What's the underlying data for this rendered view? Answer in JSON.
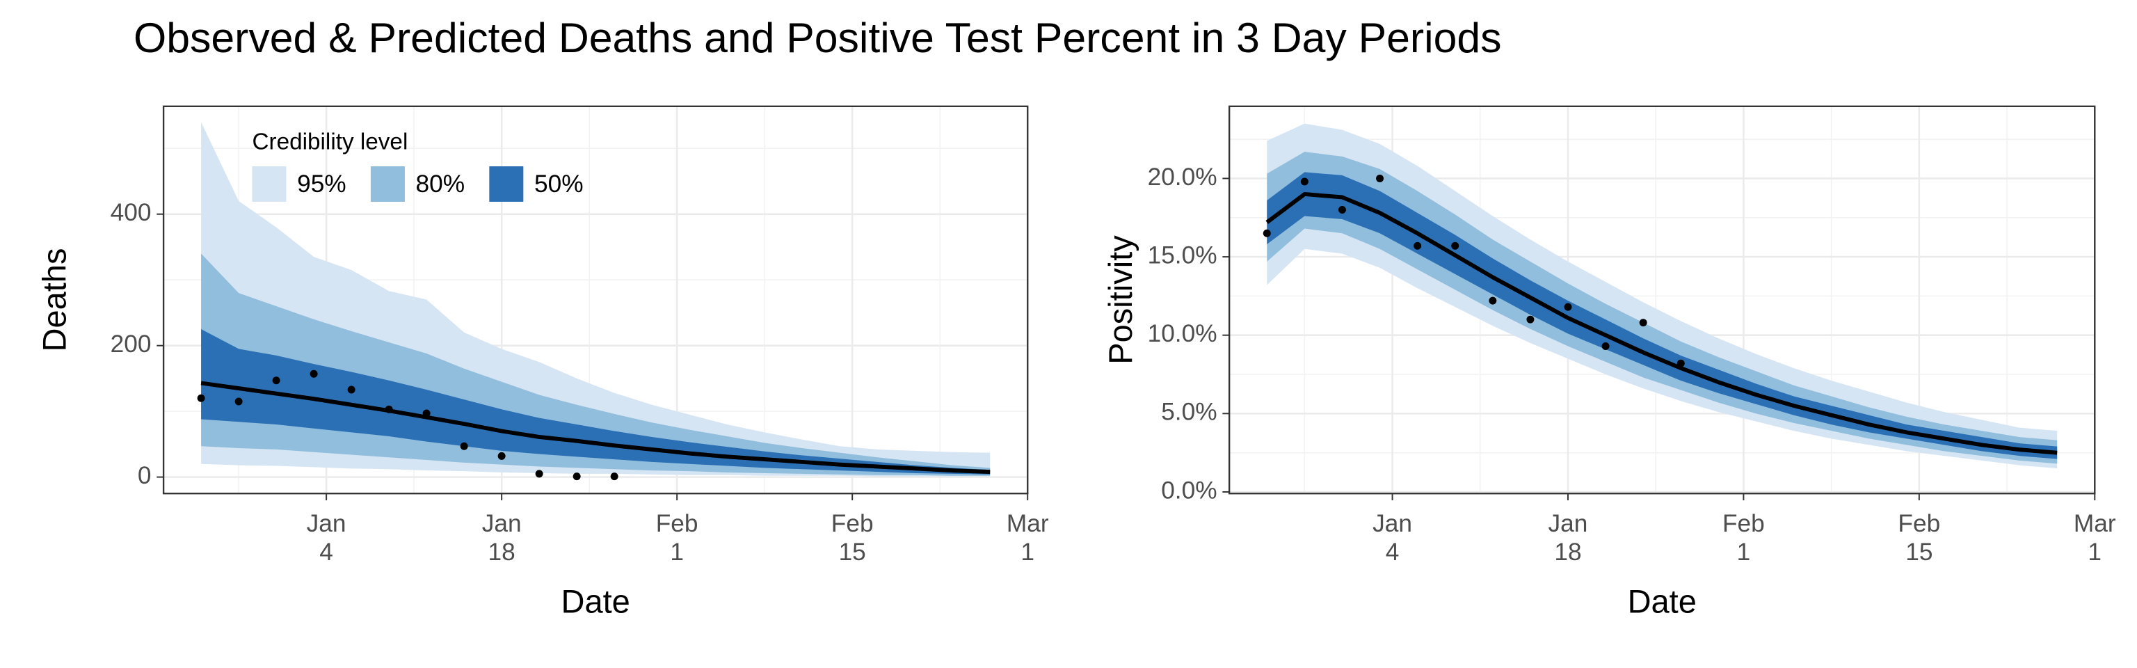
{
  "title": "Observed & Predicted Deaths and Positive Test Percent in 3 Day Periods",
  "chart_data": [
    {
      "type": "fan",
      "ylabel": "Deaths",
      "xlabel": "Date",
      "xlim": [
        "Dec 22",
        "Mar 1"
      ],
      "xticks": [
        {
          "value": "Jan 4",
          "label": "Jan\n4"
        },
        {
          "value": "Jan 18",
          "label": "Jan\n18"
        },
        {
          "value": "Feb 1",
          "label": "Feb\n1"
        },
        {
          "value": "Feb 15",
          "label": "Feb\n15"
        },
        {
          "value": "Mar 1",
          "label": "Mar\n1"
        }
      ],
      "ylim": [
        -25,
        564
      ],
      "yticks": [
        0,
        200,
        400
      ],
      "grid": true,
      "legend": {
        "title": "Credibility level",
        "position": "top-left"
      },
      "x": [
        "Dec 25",
        "Dec 28",
        "Dec 31",
        "Jan 3",
        "Jan 6",
        "Jan 9",
        "Jan 12",
        "Jan 15",
        "Jan 18",
        "Jan 21",
        "Jan 24",
        "Jan 27",
        "Jan 30",
        "Feb 2",
        "Feb 5",
        "Feb 8",
        "Feb 11",
        "Feb 14",
        "Feb 17",
        "Feb 20",
        "Feb 23",
        "Feb 26"
      ],
      "bands": [
        {
          "name": "95%",
          "color": "#d6e5f4",
          "lower": [
            20,
            18,
            17,
            15,
            13,
            12,
            10,
            9,
            7,
            6,
            5,
            5,
            4,
            3,
            3,
            2,
            2,
            2,
            1,
            1,
            1,
            1
          ],
          "upper": [
            540,
            420,
            380,
            335,
            315,
            283,
            270,
            220,
            195,
            175,
            150,
            128,
            110,
            95,
            80,
            68,
            57,
            47,
            42,
            40,
            38,
            37
          ]
        },
        {
          "name": "80%",
          "color": "#91bedc",
          "lower": [
            47,
            44,
            42,
            38,
            34,
            30,
            26,
            22,
            19,
            16,
            14,
            12,
            10,
            9,
            7,
            6,
            5,
            4,
            3,
            3,
            2,
            2
          ],
          "upper": [
            340,
            280,
            260,
            240,
            222,
            205,
            188,
            165,
            145,
            125,
            110,
            96,
            83,
            72,
            62,
            52,
            44,
            37,
            30,
            24,
            18,
            14
          ]
        },
        {
          "name": "50%",
          "color": "#2b70b5",
          "lower": [
            88,
            84,
            80,
            74,
            68,
            62,
            54,
            47,
            40,
            35,
            31,
            27,
            23,
            20,
            17,
            14,
            12,
            10,
            8,
            6,
            5,
            4
          ],
          "upper": [
            225,
            195,
            185,
            172,
            160,
            147,
            133,
            118,
            103,
            90,
            80,
            70,
            61,
            53,
            46,
            39,
            33,
            28,
            23,
            18,
            14,
            11
          ]
        }
      ],
      "series": [
        {
          "color": "#000000",
          "values": [
            143,
            135,
            127,
            119,
            110,
            101,
            91,
            81,
            70,
            61,
            55,
            48,
            42,
            36,
            31,
            27,
            23,
            19,
            16,
            13,
            10,
            8
          ]
        }
      ],
      "points": {
        "color": "#000000",
        "x": [
          "Dec 25",
          "Dec 28",
          "Dec 31",
          "Jan 3",
          "Jan 6",
          "Jan 9",
          "Jan 12",
          "Jan 15",
          "Jan 18",
          "Jan 21",
          "Jan 24",
          "Jan 27"
        ],
        "values": [
          120,
          115,
          147,
          157,
          133,
          103,
          97,
          47,
          32,
          5,
          1,
          1
        ]
      }
    },
    {
      "type": "fan",
      "ylabel": "Positivity",
      "xlabel": "Date",
      "xlim": [
        "Dec 22",
        "Mar 1"
      ],
      "xticks": [
        {
          "value": "Jan 4",
          "label": "Jan\n4"
        },
        {
          "value": "Jan 18",
          "label": "Jan\n18"
        },
        {
          "value": "Feb 1",
          "label": "Feb\n1"
        },
        {
          "value": "Feb 15",
          "label": "Feb\n15"
        },
        {
          "value": "Mar 1",
          "label": "Mar\n1"
        }
      ],
      "ylim": [
        -0.1,
        24.6
      ],
      "yticks": [
        {
          "value": 0,
          "label": "0.0%"
        },
        {
          "value": 5,
          "label": "5.0%"
        },
        {
          "value": 10,
          "label": "10.0%"
        },
        {
          "value": 15,
          "label": "15.0%"
        },
        {
          "value": 20,
          "label": "20.0%"
        }
      ],
      "grid": true,
      "x": [
        "Dec 25",
        "Dec 28",
        "Dec 31",
        "Jan 3",
        "Jan 6",
        "Jan 9",
        "Jan 12",
        "Jan 15",
        "Jan 18",
        "Jan 21",
        "Jan 24",
        "Jan 27",
        "Jan 30",
        "Feb 2",
        "Feb 5",
        "Feb 8",
        "Feb 11",
        "Feb 14",
        "Feb 17",
        "Feb 20",
        "Feb 23",
        "Feb 26"
      ],
      "bands": [
        {
          "color": "#d6e5f4",
          "lower": [
            13.2,
            15.5,
            15.2,
            14.3,
            13.0,
            11.8,
            10.6,
            9.5,
            8.5,
            7.5,
            6.6,
            5.8,
            5.1,
            4.5,
            3.9,
            3.4,
            3.0,
            2.6,
            2.3,
            2.0,
            1.7,
            1.5
          ],
          "upper": [
            22.4,
            23.5,
            23.1,
            22.2,
            20.8,
            19.2,
            17.6,
            16.1,
            14.7,
            13.4,
            12.1,
            10.9,
            9.8,
            8.8,
            7.9,
            7.1,
            6.4,
            5.7,
            5.1,
            4.6,
            4.1,
            3.9
          ]
        },
        {
          "color": "#91bedc",
          "lower": [
            14.7,
            16.8,
            16.5,
            15.5,
            14.2,
            12.9,
            11.6,
            10.4,
            9.3,
            8.3,
            7.3,
            6.5,
            5.7,
            5.0,
            4.4,
            3.9,
            3.4,
            3.0,
            2.6,
            2.3,
            2.0,
            1.8
          ],
          "upper": [
            20.3,
            21.7,
            21.4,
            20.6,
            19.2,
            17.7,
            16.1,
            14.7,
            13.3,
            12.0,
            10.8,
            9.6,
            8.6,
            7.7,
            6.8,
            6.1,
            5.4,
            4.8,
            4.3,
            3.9,
            3.5,
            3.3
          ]
        },
        {
          "color": "#2b70b5",
          "lower": [
            15.8,
            17.6,
            17.4,
            16.5,
            15.2,
            13.9,
            12.6,
            11.3,
            10.1,
            9.1,
            8.1,
            7.1,
            6.3,
            5.6,
            4.9,
            4.3,
            3.8,
            3.4,
            3.0,
            2.6,
            2.3,
            2.1
          ],
          "upper": [
            18.6,
            20.4,
            20.2,
            19.2,
            17.8,
            16.4,
            14.9,
            13.5,
            12.2,
            11.0,
            9.8,
            8.7,
            7.8,
            6.9,
            6.1,
            5.5,
            4.9,
            4.3,
            3.9,
            3.5,
            3.1,
            2.9
          ]
        }
      ],
      "series": [
        {
          "color": "#000000",
          "values": [
            17.2,
            19.0,
            18.8,
            17.8,
            16.5,
            15.1,
            13.7,
            12.4,
            11.1,
            10.0,
            8.9,
            7.9,
            7.0,
            6.2,
            5.5,
            4.9,
            4.3,
            3.8,
            3.4,
            3.0,
            2.7,
            2.5
          ]
        }
      ],
      "points": {
        "color": "#000000",
        "x": [
          "Dec 25",
          "Dec 28",
          "Dec 31",
          "Jan 3",
          "Jan 6",
          "Jan 9",
          "Jan 12",
          "Jan 15",
          "Jan 18",
          "Jan 21",
          "Jan 24",
          "Jan 27"
        ],
        "values": [
          16.5,
          19.8,
          18.0,
          20.0,
          15.7,
          15.7,
          12.2,
          11.0,
          11.8,
          9.3,
          10.8,
          8.2
        ]
      }
    }
  ]
}
